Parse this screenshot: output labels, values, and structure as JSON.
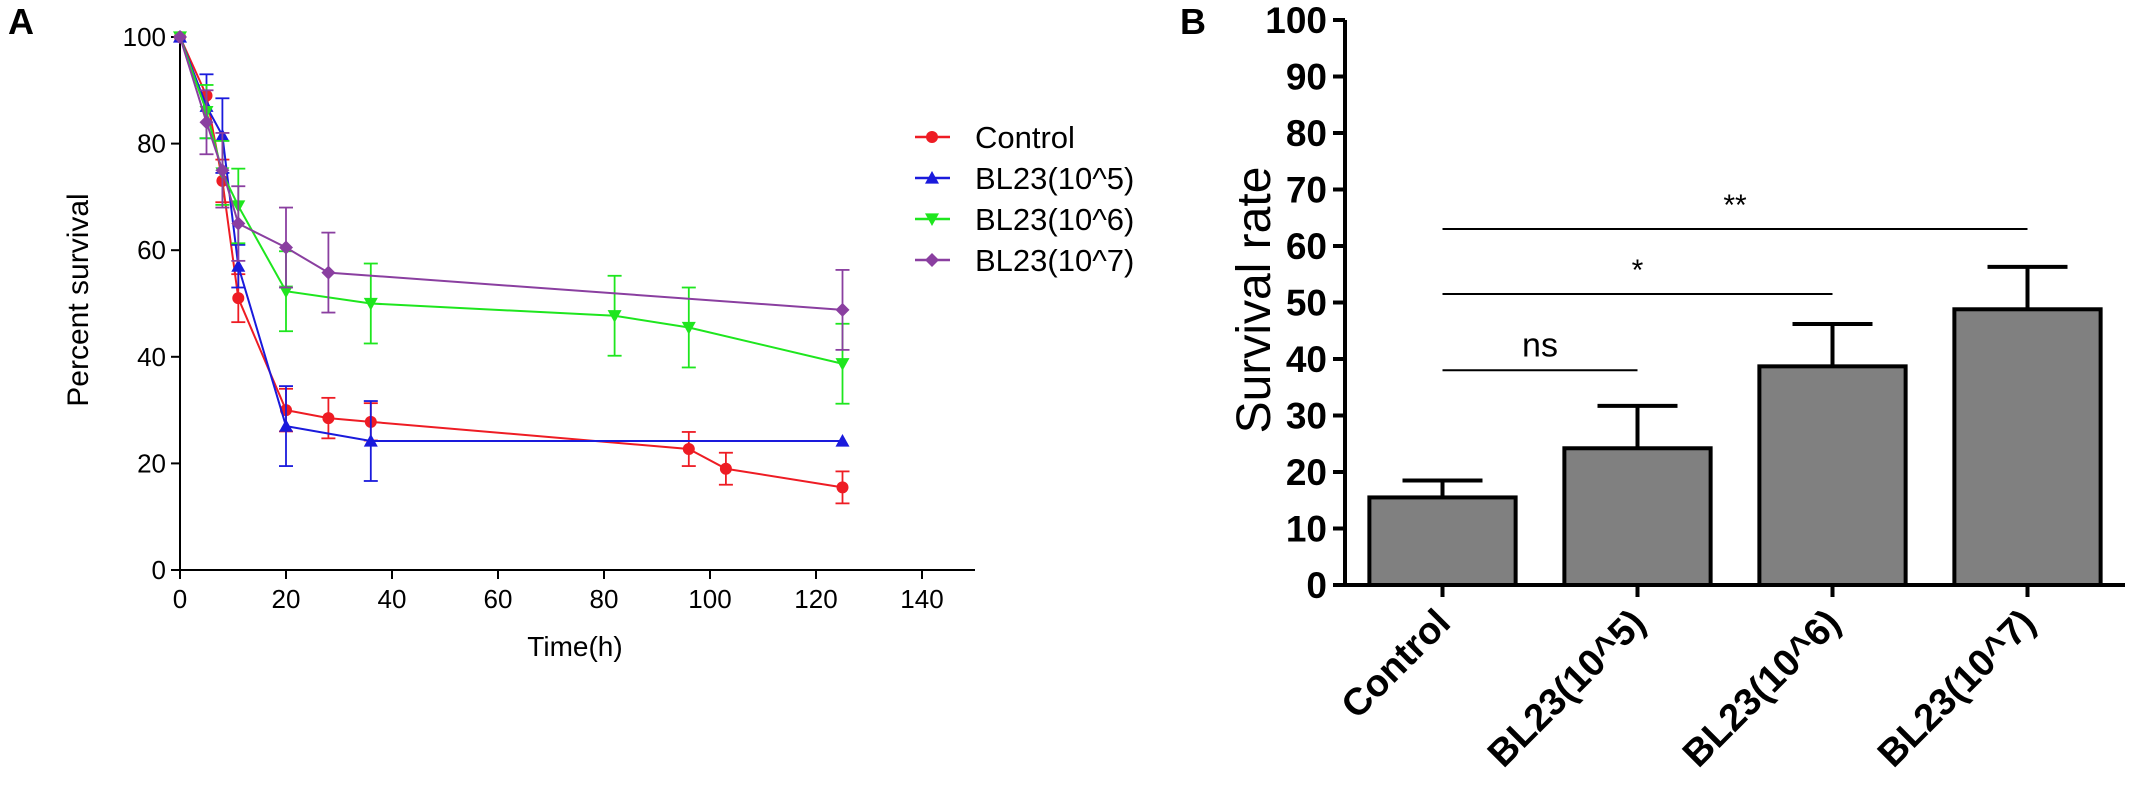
{
  "panels": {
    "a_label": "A",
    "b_label": "B"
  },
  "colors": {
    "control": "#ee1c24",
    "bl23_5": "#1a1adc",
    "bl23_6": "#1ee61e",
    "bl23_7": "#8a3fa0",
    "bar_fill": "#808080",
    "axis": "#000000"
  },
  "chart_data": [
    {
      "type": "line",
      "panel": "A",
      "title": "",
      "xlabel": "Time(h)",
      "ylabel": "Percent survival",
      "xlim": [
        0,
        150
      ],
      "ylim": [
        0,
        100
      ],
      "xticks": [
        0,
        20,
        40,
        60,
        80,
        100,
        120,
        140
      ],
      "yticks": [
        0,
        20,
        40,
        60,
        80,
        100
      ],
      "legend_position": "right",
      "series": [
        {
          "name": "Control",
          "color_key": "control",
          "marker": "circle",
          "x": [
            0,
            5,
            8,
            11,
            20,
            28,
            36,
            96,
            103,
            125
          ],
          "y": [
            100,
            89,
            73,
            51,
            30,
            28.5,
            27.8,
            22.7,
            19,
            15.5
          ],
          "err": [
            0,
            0,
            4,
            4.5,
            4,
            3.8,
            3.5,
            3.2,
            3,
            3
          ]
        },
        {
          "name": "BL23(10^5)",
          "color_key": "bl23_5",
          "marker": "triangle-up",
          "x": [
            0,
            5,
            8,
            11,
            20,
            36,
            125
          ],
          "y": [
            100,
            87,
            81.5,
            57,
            27,
            24.2,
            24.2
          ],
          "err": [
            0,
            6,
            7,
            4,
            7.5,
            7.5,
            0
          ]
        },
        {
          "name": "BL23(10^6)",
          "color_key": "bl23_6",
          "marker": "triangle-down",
          "x": [
            0,
            5,
            8,
            11,
            20,
            36,
            82,
            96,
            125
          ],
          "y": [
            100,
            86,
            74.5,
            68.3,
            52.3,
            50,
            47.7,
            45.5,
            38.7
          ],
          "err": [
            0,
            5,
            6,
            7,
            7.5,
            7.5,
            7.5,
            7.5,
            7.5
          ]
        },
        {
          "name": "BL23(10^7)",
          "color_key": "bl23_7",
          "marker": "diamond",
          "x": [
            0,
            5,
            8,
            11,
            20,
            28,
            125
          ],
          "y": [
            100,
            84,
            75,
            65,
            60.5,
            55.8,
            48.8
          ],
          "err": [
            0,
            6,
            7,
            7,
            7.5,
            7.5,
            7.5
          ]
        }
      ]
    },
    {
      "type": "bar",
      "panel": "B",
      "title": "",
      "xlabel": "",
      "ylabel": "Survival rate",
      "ylim": [
        0,
        100
      ],
      "yticks": [
        0,
        10,
        20,
        30,
        40,
        50,
        60,
        70,
        80,
        90,
        100
      ],
      "categories": [
        "Control",
        "BL23(10^5)",
        "BL23(10^6)",
        "BL23(10^7)"
      ],
      "values": [
        15.5,
        24.2,
        38.7,
        48.8
      ],
      "errors": [
        3,
        7.5,
        7.5,
        7.5
      ],
      "annotations": [
        {
          "from": 0,
          "to": 1,
          "y": 38,
          "label": "ns"
        },
        {
          "from": 0,
          "to": 2,
          "y": 51.5,
          "label": "*"
        },
        {
          "from": 0,
          "to": 3,
          "y": 63,
          "label": "**"
        }
      ]
    }
  ]
}
